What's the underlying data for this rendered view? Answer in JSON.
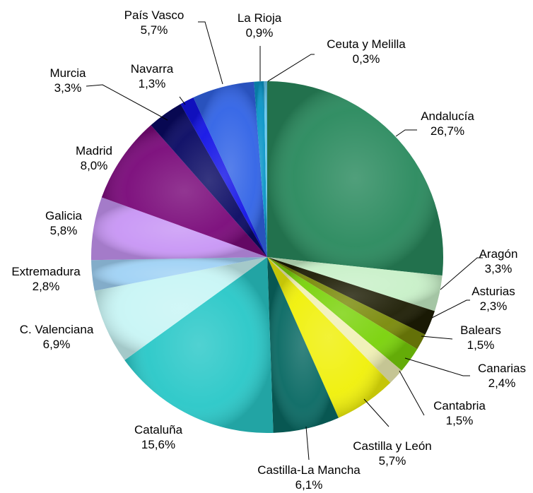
{
  "chart_data": {
    "type": "pie",
    "title": "",
    "start_angle_deg": 0,
    "direction": "clockwise",
    "legend": "none",
    "slices": [
      {
        "name": "Andalucía",
        "value": 26.7,
        "label": "26,7%",
        "color": "#2a8a5e"
      },
      {
        "name": "Aragón",
        "value": 3.3,
        "label": "3,3%",
        "color": "#c8f0c8"
      },
      {
        "name": "Asturias",
        "value": 2.3,
        "label": "2,3%",
        "color": "#1e1e05"
      },
      {
        "name": "Balears",
        "value": 1.5,
        "label": "1,5%",
        "color": "#7a8a0a"
      },
      {
        "name": "Canarias",
        "value": 2.4,
        "label": "2,4%",
        "color": "#7ad20a"
      },
      {
        "name": "Cantabria",
        "value": 1.5,
        "label": "1,5%",
        "color": "#f0f0b4"
      },
      {
        "name": "Castilla y León",
        "value": 5.7,
        "label": "5,7%",
        "color": "#f0f00a"
      },
      {
        "name": "Castilla-La Mancha",
        "value": 6.1,
        "label": "6,1%",
        "color": "#0a6a64"
      },
      {
        "name": "Cataluña",
        "value": 15.6,
        "label": "15,6%",
        "color": "#2ac8c8"
      },
      {
        "name": "C. Valenciana",
        "value": 6.9,
        "label": "6,9%",
        "color": "#c8f5f5"
      },
      {
        "name": "Extremadura",
        "value": 2.8,
        "label": "2,8%",
        "color": "#a0d2f5"
      },
      {
        "name": "Galicia",
        "value": 5.8,
        "label": "5,8%",
        "color": "#c896f5"
      },
      {
        "name": "Madrid",
        "value": 8.0,
        "label": "8,0%",
        "color": "#7a0a7a"
      },
      {
        "name": "Murcia",
        "value": 3.3,
        "label": "3,3%",
        "color": "#0a0a64"
      },
      {
        "name": "Navarra",
        "value": 1.3,
        "label": "1,3%",
        "color": "#1414e6"
      },
      {
        "name": "País Vasco",
        "value": 5.7,
        "label": "5,7%",
        "color": "#3264e6"
      },
      {
        "name": "La Rioja",
        "value": 0.9,
        "label": "0,9%",
        "color": "#0a96c8"
      },
      {
        "name": "Ceuta y Melilla",
        "value": 0.3,
        "label": "0,3%",
        "color": "#64c8f0"
      }
    ]
  }
}
